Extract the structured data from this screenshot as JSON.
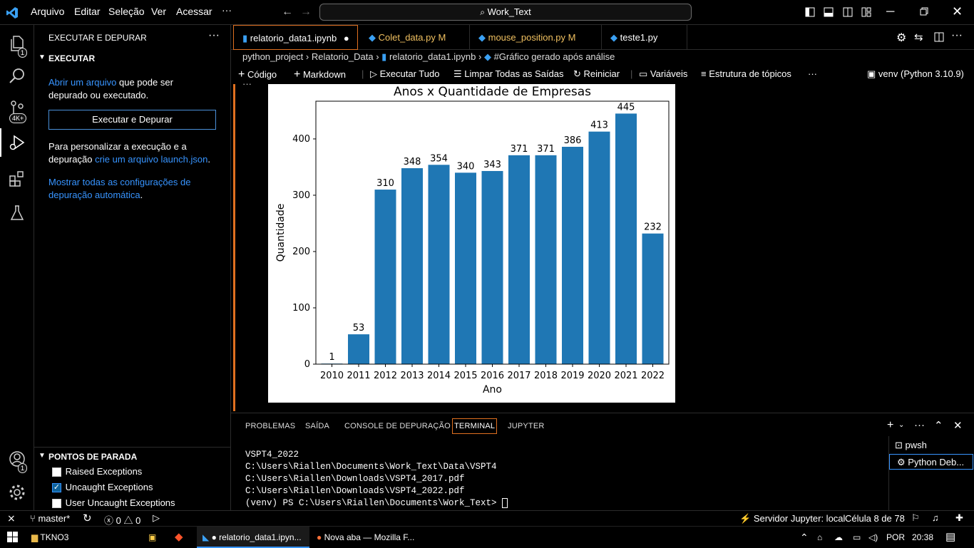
{
  "titlebar": {
    "menu": [
      "Arquivo",
      "Editar",
      "Seleção",
      "Ver",
      "Acessar"
    ],
    "more": "···",
    "command_center": "Work_Text"
  },
  "activity": {
    "explorer_badge": "1",
    "scm_badge": "4K+",
    "account_badge": "1"
  },
  "sidebar": {
    "title": "EXECUTAR E DEPURAR",
    "section": "EXECUTAR",
    "open_file_link": "Abrir um arquivo",
    "open_file_rest_1": "que pode ser",
    "open_file_rest_2": "depurado ou executado.",
    "run_debug_button": "Executar e Depurar",
    "customize_1": "Para personalizar a execução e a",
    "customize_2": "depuração",
    "create_launch_link": "crie um arquivo launch.json",
    "period": ".",
    "auto_config_link_1": "Mostrar todas as configurações de",
    "auto_config_link_2": "depuração automática",
    "breakpoints_title": "PONTOS DE PARADA",
    "breakpoints": [
      {
        "label": "Raised Exceptions",
        "checked": false
      },
      {
        "label": "Uncaught Exceptions",
        "checked": true
      },
      {
        "label": "User Uncaught Exceptions",
        "checked": false
      }
    ]
  },
  "tabs": [
    {
      "label": "relatorio_data1.ipynb",
      "status": "●"
    },
    {
      "label": "Colet_data.py",
      "status": "M"
    },
    {
      "label": "mouse_position.py",
      "status": "M"
    },
    {
      "label": "teste1.py",
      "status": ""
    }
  ],
  "breadcrumb": [
    "python_project",
    "Relatorio_Data",
    "relatorio_data1.ipynb",
    "#Gráfico gerado após análise"
  ],
  "notebook_toolbar": {
    "code": "Código",
    "markdown": "Markdown",
    "run_all": "Executar Tudo",
    "clear_outputs": "Limpar Todas as Saídas",
    "restart": "Reiniciar",
    "variables": "Variáveis",
    "outline": "Estrutura de tópicos",
    "more": "···",
    "kernel": "venv (Python 3.10.9)"
  },
  "chart_data": {
    "type": "bar",
    "title": "Anos x Quantidade de Empresas",
    "xlabel": "Ano",
    "ylabel": "Quantidade",
    "categories": [
      "2010",
      "2011",
      "2012",
      "2013",
      "2014",
      "2015",
      "2016",
      "2017",
      "2018",
      "2019",
      "2020",
      "2021",
      "2022"
    ],
    "values": [
      1,
      53,
      310,
      348,
      354,
      340,
      343,
      371,
      371,
      386,
      413,
      445,
      232
    ],
    "yticks": [
      0,
      100,
      200,
      300,
      400
    ],
    "ylim": [
      0,
      467
    ],
    "bar_color": "#1f77b4",
    "grid": false,
    "data_labels": true
  },
  "panel": {
    "tabs": [
      "PROBLEMAS",
      "SAÍDA",
      "CONSOLE DE DEPURAÇÃO",
      "TERMINAL",
      "JUPYTER"
    ],
    "active_tab": "TERMINAL",
    "terminal_lines": [
      "VSPT4_2022",
      "C:\\Users\\Riallen\\Documents\\Work_Text\\Data\\VSPT4",
      "C:\\Users\\Riallen\\Downloads\\VSPT4_2017.pdf",
      "C:\\Users\\Riallen\\Downloads\\VSPT4_2022.pdf",
      "(venv) PS C:\\Users\\Riallen\\Documents\\Work_Text> "
    ],
    "terminal_instances": [
      "pwsh",
      "Python Deb..."
    ]
  },
  "statusbar": {
    "branch": "master*",
    "errors": "0",
    "warnings": "0",
    "jupyter_server": "Servidor Jupyter: local",
    "cell": "Célula 8 de 78"
  },
  "taskbar": {
    "items": [
      "TKNO3",
      "● relatorio_data1.ipyn...",
      "Nova aba — Mozilla F..."
    ],
    "language": "POR",
    "time": "20:38"
  }
}
